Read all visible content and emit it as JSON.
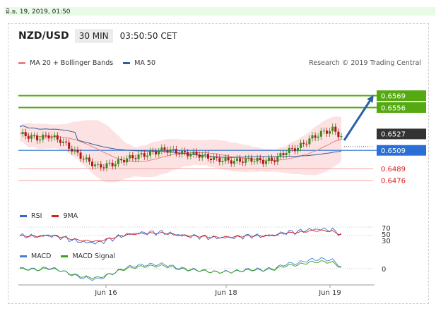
{
  "date_label": "มิ.ย. 19, 2019, 01:50",
  "header": {
    "symbol": "NZD/USD",
    "timeframe": "30 MIN",
    "time": "03:50:50 CET"
  },
  "legend": {
    "ma20": "MA 20 + Bollinger Bands",
    "ma50": "MA 50",
    "rsi": "RSI",
    "rsi_ma": "9MA",
    "macd": "MACD",
    "macd_signal": "MACD Signal"
  },
  "credit": "Research © 2019 Trading Central",
  "colors": {
    "resistance": "#55aa11",
    "support": "#2a6fd6",
    "target_arrow": "#2d5fa8",
    "ma20": "#f08080",
    "ma50": "#2f5f9e",
    "up": "#3a8a1a",
    "down": "#b01818",
    "rsi": "#3a66cc",
    "rsi_ma": "#d42020",
    "macd": "#4a7fd0",
    "macd_signal": "#3aa01a"
  },
  "chart_data": {
    "type": "candlestick",
    "x_ticks": [
      "Jun 16",
      "Jun 18",
      "Jun 19"
    ],
    "price_levels": [
      {
        "value": "0.6569",
        "style": "resistance"
      },
      {
        "value": "0.6556",
        "style": "resistance"
      },
      {
        "value": "0.6527",
        "style": "current"
      },
      {
        "value": "0.6509",
        "style": "support"
      },
      {
        "value": "0.6489",
        "style": "minor"
      },
      {
        "value": "0.6476",
        "style": "minor"
      }
    ],
    "ylim": [
      0.6448,
      0.6585
    ],
    "rsi_ticks": [
      "70",
      "50",
      "30"
    ],
    "macd_ticks": [
      "0"
    ]
  }
}
